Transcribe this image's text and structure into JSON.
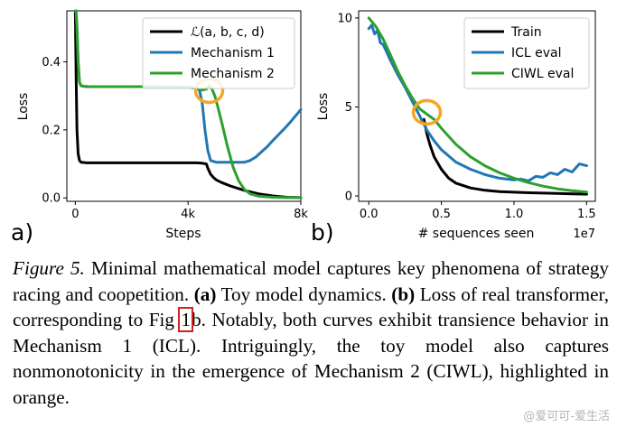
{
  "chart_data": [
    {
      "panel": "a)",
      "type": "line",
      "xlabel": "Steps",
      "ylabel": "Loss",
      "xlim": [
        -300,
        8000
      ],
      "ylim": [
        -0.01,
        0.55
      ],
      "xticks": [
        0,
        4000,
        8000
      ],
      "xtick_labels": [
        "0",
        "4k",
        "8k"
      ],
      "yticks": [
        0.0,
        0.2,
        0.4
      ],
      "ytick_labels": [
        "0.0",
        "0.2",
        "0.4"
      ],
      "legend_location": "top-right",
      "series": [
        {
          "name": "ℒ(a, b, c, d)",
          "color": "#000000",
          "x": [
            0,
            30,
            60,
            100,
            150,
            200,
            300,
            400,
            600,
            1000,
            1500,
            2000,
            2500,
            3000,
            3500,
            4000,
            4300,
            4500,
            4650,
            4700,
            4800,
            4900,
            5000,
            5200,
            5500,
            6000,
            6500,
            7000,
            7500,
            8000
          ],
          "y": [
            0.55,
            0.35,
            0.2,
            0.13,
            0.11,
            0.105,
            0.104,
            0.103,
            0.103,
            0.103,
            0.103,
            0.103,
            0.103,
            0.103,
            0.103,
            0.103,
            0.103,
            0.102,
            0.1,
            0.088,
            0.07,
            0.06,
            0.053,
            0.045,
            0.035,
            0.022,
            0.012,
            0.006,
            0.002,
            0.001
          ]
        },
        {
          "name": "Mechanism 1",
          "color": "#1f77b4",
          "x": [
            0,
            30,
            60,
            100,
            150,
            200,
            300,
            500,
            1000,
            1500,
            2000,
            2500,
            3000,
            3500,
            4000,
            4200,
            4400,
            4500,
            4600,
            4700,
            4800,
            5000,
            5500,
            6000,
            6200,
            6400,
            6600,
            6800,
            7000,
            7200,
            7400,
            7600,
            7800,
            8000
          ],
          "y": [
            0.55,
            0.55,
            0.5,
            0.4,
            0.34,
            0.33,
            0.328,
            0.327,
            0.327,
            0.327,
            0.327,
            0.327,
            0.326,
            0.326,
            0.325,
            0.323,
            0.318,
            0.28,
            0.2,
            0.14,
            0.11,
            0.105,
            0.105,
            0.105,
            0.11,
            0.12,
            0.135,
            0.15,
            0.168,
            0.185,
            0.202,
            0.22,
            0.24,
            0.26
          ]
        },
        {
          "name": "Mechanism 2",
          "color": "#2ca02c",
          "x": [
            0,
            30,
            60,
            100,
            150,
            200,
            300,
            500,
            1000,
            1500,
            2000,
            2500,
            3000,
            3500,
            4000,
            4300,
            4500,
            4650,
            4750,
            4850,
            4950,
            5050,
            5200,
            5400,
            5600,
            5800,
            6000,
            6200,
            6500,
            7000,
            7500,
            8000
          ],
          "y": [
            0.55,
            0.55,
            0.5,
            0.4,
            0.34,
            0.33,
            0.328,
            0.327,
            0.327,
            0.327,
            0.327,
            0.327,
            0.326,
            0.326,
            0.325,
            0.323,
            0.317,
            0.32,
            0.33,
            0.32,
            0.3,
            0.27,
            0.22,
            0.15,
            0.09,
            0.05,
            0.025,
            0.012,
            0.005,
            0.002,
            0.001,
            0.001
          ]
        }
      ],
      "annotations": [
        {
          "type": "circle",
          "color": "#f5a623",
          "x": 4750,
          "y": 0.315
        }
      ]
    },
    {
      "panel": "b)",
      "type": "line",
      "xlabel": "# sequences seen",
      "ylabel": "Loss",
      "x_multiplier": "1e7",
      "xlim": [
        -0.07,
        1.56
      ],
      "ylim": [
        -0.3,
        10.4
      ],
      "xticks": [
        0.0,
        0.5,
        1.0,
        1.5
      ],
      "xtick_labels": [
        "0.0",
        "0.5",
        "1.0",
        "1.5"
      ],
      "yticks": [
        0,
        5,
        10
      ],
      "ytick_labels": [
        "0",
        "5",
        "10"
      ],
      "legend_location": "top-right",
      "series": [
        {
          "name": "Train",
          "color": "#000000",
          "x": [
            0.38,
            0.4,
            0.42,
            0.45,
            0.5,
            0.55,
            0.6,
            0.7,
            0.8,
            0.9,
            1.0,
            1.1,
            1.2,
            1.3,
            1.4,
            1.5
          ],
          "y": [
            4.3,
            3.5,
            2.9,
            2.2,
            1.5,
            1.0,
            0.72,
            0.45,
            0.32,
            0.25,
            0.21,
            0.18,
            0.16,
            0.14,
            0.12,
            0.1
          ]
        },
        {
          "name": "ICL eval",
          "color": "#1f77b4",
          "x": [
            0.0,
            0.02,
            0.04,
            0.06,
            0.08,
            0.1,
            0.15,
            0.2,
            0.25,
            0.3,
            0.35,
            0.4,
            0.45,
            0.5,
            0.6,
            0.7,
            0.8,
            0.9,
            1.0,
            1.05,
            1.1,
            1.15,
            1.2,
            1.25,
            1.3,
            1.35,
            1.4,
            1.45,
            1.5
          ],
          "y": [
            9.4,
            9.6,
            9.1,
            9.3,
            8.6,
            8.5,
            7.6,
            6.8,
            6.1,
            5.3,
            4.5,
            3.7,
            3.1,
            2.6,
            1.9,
            1.5,
            1.2,
            1.0,
            0.9,
            0.95,
            0.85,
            1.1,
            1.05,
            1.3,
            1.2,
            1.5,
            1.35,
            1.8,
            1.7
          ]
        },
        {
          "name": "CIWL eval",
          "color": "#2ca02c",
          "x": [
            0.0,
            0.05,
            0.1,
            0.15,
            0.2,
            0.25,
            0.3,
            0.35,
            0.4,
            0.45,
            0.5,
            0.6,
            0.7,
            0.8,
            0.9,
            1.0,
            1.1,
            1.2,
            1.3,
            1.4,
            1.5
          ],
          "y": [
            10.0,
            9.5,
            8.8,
            7.9,
            7.0,
            6.2,
            5.5,
            4.9,
            4.6,
            4.3,
            3.8,
            2.9,
            2.2,
            1.7,
            1.3,
            1.0,
            0.75,
            0.55,
            0.4,
            0.3,
            0.22
          ]
        }
      ],
      "annotations": [
        {
          "type": "circle",
          "color": "#f5a623",
          "x": 0.4,
          "y": 4.7
        }
      ]
    }
  ],
  "caption": {
    "fig_label": "Figure 5.",
    "part1": " Minimal mathematical model captures key phenomena of strategy racing and coopetition. ",
    "bold_a": "(a)",
    "part2": " Toy model dynamics. ",
    "bold_b": "(b)",
    "part3": " Loss of real transformer, corresponding to Fig ",
    "fig_ref": "1",
    "part4": "b. Notably, both curves exhibit transience behavior in Mechanism 1 (ICL). Intriguingly, the toy model also captures nonmonotonicity in the emergence of Mechanism 2 (CIWL), highlighted in orange."
  },
  "watermark": "@爱可可-爱生活"
}
